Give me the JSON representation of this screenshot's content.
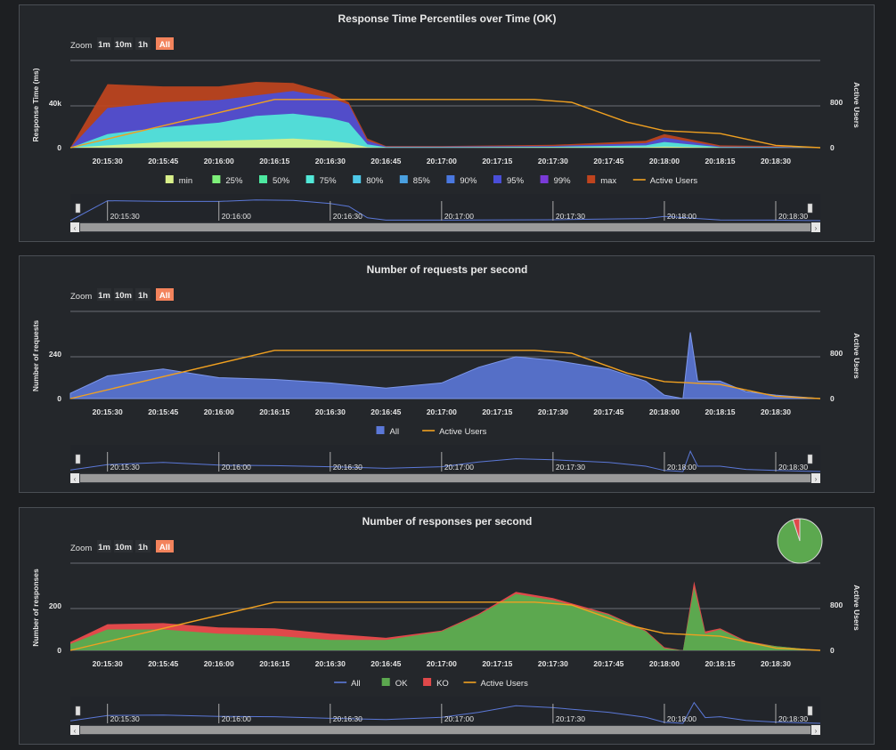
{
  "zoom": {
    "label": "Zoom",
    "buttons": [
      "1m",
      "10m",
      "1h",
      "All"
    ],
    "active": "All"
  },
  "colors": {
    "background": "#24272b",
    "grid": "#6a6e74",
    "active_users": "#f0a020",
    "all": "#5b78d8",
    "ok": "#5ca84f",
    "ko": "#e0494a",
    "percentiles": [
      "#d9f08a",
      "#7ef07a",
      "#4de8a0",
      "#52e8d8",
      "#4ec8e8",
      "#4aa0e0",
      "#4a78e0",
      "#4a4ed8",
      "#7a3ad8",
      "#c0441e"
    ]
  },
  "time_ticks": [
    "20:15:30",
    "20:15:45",
    "20:16:00",
    "20:16:15",
    "20:16:30",
    "20:16:45",
    "20:17:00",
    "20:17:15",
    "20:17:30",
    "20:17:45",
    "20:18:00",
    "20:18:15",
    "20:18:30"
  ],
  "navigator_ticks": [
    "20:15:30",
    "20:16:00",
    "20:16:30",
    "20:17:00",
    "20:17:30",
    "20:18:00",
    "20:18:30"
  ],
  "chart_data": [
    {
      "type": "area",
      "title": "Response Time Percentiles over Time (OK)",
      "ylabel": "Response Time (ms)",
      "y2label": "Active Users",
      "y_ticks": [
        "0",
        "40k"
      ],
      "y2_ticks": [
        "0",
        "800"
      ],
      "legend": [
        "min",
        "25%",
        "50%",
        "75%",
        "80%",
        "85%",
        "90%",
        "95%",
        "99%",
        "max",
        "Active Users"
      ],
      "series": [
        {
          "name": "max",
          "x": [
            "20:15:20",
            "20:15:30",
            "20:15:45",
            "20:16:00",
            "20:16:10",
            "20:16:20",
            "20:16:30",
            "20:16:35",
            "20:16:40",
            "20:16:45",
            "20:17:00",
            "20:17:30",
            "20:17:55",
            "20:18:00",
            "20:18:15",
            "20:18:30",
            "20:18:42"
          ],
          "y": [
            0,
            56000,
            54000,
            54000,
            58000,
            57000,
            48000,
            40000,
            8000,
            1500,
            1500,
            2500,
            6000,
            12000,
            2000,
            1500,
            0
          ]
        },
        {
          "name": "95%",
          "x": [
            "20:15:20",
            "20:15:30",
            "20:15:45",
            "20:16:00",
            "20:16:10",
            "20:16:20",
            "20:16:30",
            "20:16:35",
            "20:16:40",
            "20:16:45",
            "20:17:00",
            "20:17:30",
            "20:17:55",
            "20:18:00",
            "20:18:15",
            "20:18:30",
            "20:18:42"
          ],
          "y": [
            0,
            35000,
            40000,
            42000,
            46000,
            50000,
            44000,
            38000,
            6000,
            1000,
            1000,
            1500,
            4000,
            9000,
            1000,
            800,
            0
          ]
        },
        {
          "name": "75%",
          "x": [
            "20:15:20",
            "20:15:30",
            "20:15:45",
            "20:16:00",
            "20:16:10",
            "20:16:20",
            "20:16:30",
            "20:16:35",
            "20:16:40",
            "20:16:45",
            "20:17:00",
            "20:17:30",
            "20:17:55",
            "20:18:00",
            "20:18:15",
            "20:18:30",
            "20:18:42"
          ],
          "y": [
            0,
            12000,
            18000,
            22000,
            28000,
            30000,
            26000,
            22000,
            3000,
            500,
            500,
            800,
            2000,
            5000,
            500,
            400,
            0
          ]
        },
        {
          "name": "min",
          "x": [
            "20:15:20",
            "20:15:30",
            "20:15:45",
            "20:16:00",
            "20:16:10",
            "20:16:20",
            "20:16:30",
            "20:16:35",
            "20:16:40",
            "20:16:45",
            "20:17:00",
            "20:17:30",
            "20:17:55",
            "20:18:00",
            "20:18:15",
            "20:18:30",
            "20:18:42"
          ],
          "y": [
            0,
            2000,
            5000,
            6000,
            7000,
            8000,
            6000,
            4000,
            500,
            200,
            200,
            300,
            500,
            1000,
            200,
            100,
            0
          ]
        },
        {
          "name": "Active Users",
          "axis": "right",
          "x": [
            "20:15:20",
            "20:16:15",
            "20:17:25",
            "20:17:35",
            "20:17:50",
            "20:18:00",
            "20:18:15",
            "20:18:30",
            "20:18:42"
          ],
          "y": [
            0,
            850,
            850,
            800,
            450,
            300,
            250,
            40,
            0
          ]
        }
      ]
    },
    {
      "type": "area",
      "title": "Number of requests per second",
      "ylabel": "Number of requests",
      "y2label": "Active Users",
      "y_ticks": [
        "0",
        "240"
      ],
      "y2_ticks": [
        "0",
        "800"
      ],
      "legend": [
        "All",
        "Active Users"
      ],
      "series": [
        {
          "name": "All",
          "x": [
            "20:15:20",
            "20:15:30",
            "20:15:45",
            "20:16:00",
            "20:16:15",
            "20:16:30",
            "20:16:45",
            "20:17:00",
            "20:17:10",
            "20:17:20",
            "20:17:30",
            "20:17:45",
            "20:17:55",
            "20:18:00",
            "20:18:05",
            "20:18:07",
            "20:18:09",
            "20:18:15",
            "20:18:22",
            "20:18:30",
            "20:18:42"
          ],
          "y": [
            30,
            130,
            170,
            120,
            110,
            90,
            60,
            90,
            180,
            240,
            220,
            170,
            100,
            20,
            0,
            380,
            100,
            100,
            40,
            20,
            0
          ]
        },
        {
          "name": "Active Users",
          "x": [
            "20:15:20",
            "20:16:15",
            "20:17:25",
            "20:17:35",
            "20:17:50",
            "20:18:00",
            "20:18:15",
            "20:18:30",
            "20:18:42"
          ],
          "y": [
            0,
            850,
            850,
            800,
            450,
            300,
            250,
            40,
            0
          ]
        }
      ]
    },
    {
      "type": "area",
      "title": "Number of responses per second",
      "ylabel": "Number of responses",
      "y2label": "Active Users",
      "y_ticks": [
        "0",
        "200"
      ],
      "y2_ticks": [
        "0",
        "800"
      ],
      "legend": [
        "All",
        "OK",
        "KO",
        "Active Users"
      ],
      "series": [
        {
          "name": "OK",
          "x": [
            "20:15:20",
            "20:15:30",
            "20:15:45",
            "20:16:00",
            "20:16:15",
            "20:16:30",
            "20:16:45",
            "20:17:00",
            "20:17:10",
            "20:17:20",
            "20:17:30",
            "20:17:45",
            "20:17:55",
            "20:18:00",
            "20:18:05",
            "20:18:08",
            "20:18:11",
            "20:18:15",
            "20:18:22",
            "20:18:30",
            "20:18:42"
          ],
          "y": [
            30,
            100,
            100,
            80,
            70,
            50,
            50,
            90,
            170,
            270,
            240,
            170,
            90,
            10,
            0,
            300,
            80,
            100,
            40,
            20,
            0
          ]
        },
        {
          "name": "KO",
          "x": [
            "20:15:20",
            "20:15:30",
            "20:15:45",
            "20:16:00",
            "20:16:15",
            "20:16:30",
            "20:16:45",
            "20:17:00",
            "20:17:10",
            "20:17:20",
            "20:17:30",
            "20:17:45",
            "20:17:55",
            "20:18:00",
            "20:18:05",
            "20:18:08",
            "20:18:11",
            "20:18:15",
            "20:18:22",
            "20:18:30",
            "20:18:42"
          ],
          "y": [
            10,
            25,
            30,
            30,
            35,
            30,
            10,
            5,
            5,
            10,
            10,
            5,
            5,
            5,
            0,
            30,
            10,
            5,
            5,
            0,
            0
          ]
        },
        {
          "name": "Active Users",
          "x": [
            "20:15:20",
            "20:16:15",
            "20:17:25",
            "20:17:35",
            "20:17:50",
            "20:18:00",
            "20:18:15",
            "20:18:30",
            "20:18:42"
          ],
          "y": [
            0,
            850,
            850,
            800,
            450,
            300,
            250,
            40,
            0
          ]
        }
      ],
      "pie": {
        "OK": 95,
        "KO": 5
      }
    }
  ]
}
